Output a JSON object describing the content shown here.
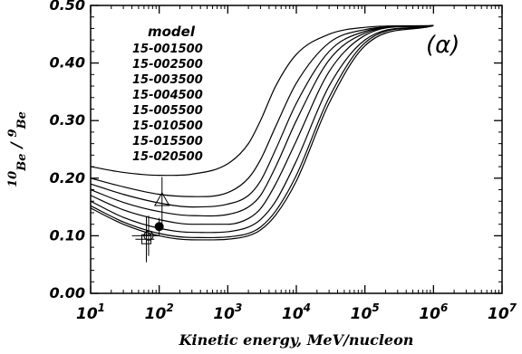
{
  "chart_data": {
    "type": "line",
    "panel_label": "(α)",
    "xlabel": "Kinetic energy, MeV/nucleon",
    "ylabel_parts": {
      "sup1": "10",
      "sub1": "Be",
      "slash": " / ",
      "sup2": "9",
      "sub2": "Be"
    },
    "xscale": "log",
    "xlim": [
      10,
      10000000
    ],
    "ylim": [
      0.0,
      0.5
    ],
    "grid": false,
    "x_ticks": [
      {
        "base": "10",
        "exp": "1",
        "value": 10
      },
      {
        "base": "10",
        "exp": "2",
        "value": 100
      },
      {
        "base": "10",
        "exp": "3",
        "value": 1000
      },
      {
        "base": "10",
        "exp": "4",
        "value": 10000
      },
      {
        "base": "10",
        "exp": "5",
        "value": 100000
      },
      {
        "base": "10",
        "exp": "6",
        "value": 1000000
      },
      {
        "base": "10",
        "exp": "7",
        "value": 10000000
      }
    ],
    "y_ticks": [
      {
        "label": "0.00",
        "value": 0.0
      },
      {
        "label": "0.10",
        "value": 0.1
      },
      {
        "label": "0.20",
        "value": 0.2
      },
      {
        "label": "0.30",
        "value": 0.3
      },
      {
        "label": "0.40",
        "value": 0.4
      },
      {
        "label": "0.50",
        "value": 0.5
      }
    ],
    "legend": {
      "title": "model",
      "placement": "top-left",
      "entries": [
        "15-001500",
        "15-002500",
        "15-003500",
        "15-004500",
        "15-005500",
        "15-010500",
        "15-015500",
        "15-020500"
      ]
    },
    "series": [
      {
        "name": "15-001500",
        "x": [
          10,
          30,
          100,
          300,
          1000,
          2000,
          3000,
          5000,
          10000,
          30000,
          100000,
          1000000
        ],
        "y": [
          0.22,
          0.21,
          0.205,
          0.207,
          0.225,
          0.26,
          0.3,
          0.36,
          0.415,
          0.45,
          0.462,
          0.465
        ]
      },
      {
        "name": "15-002500",
        "x": [
          10,
          30,
          100,
          300,
          1000,
          2000,
          3000,
          5000,
          10000,
          30000,
          100000,
          1000000
        ],
        "y": [
          0.2,
          0.185,
          0.172,
          0.168,
          0.175,
          0.2,
          0.232,
          0.29,
          0.365,
          0.435,
          0.458,
          0.465
        ]
      },
      {
        "name": "15-003500",
        "x": [
          10,
          30,
          100,
          300,
          1000,
          2000,
          3000,
          5000,
          10000,
          30000,
          100000,
          1000000
        ],
        "y": [
          0.19,
          0.172,
          0.157,
          0.15,
          0.155,
          0.17,
          0.195,
          0.25,
          0.33,
          0.42,
          0.455,
          0.465
        ]
      },
      {
        "name": "15-004500",
        "x": [
          10,
          30,
          100,
          300,
          1000,
          2000,
          3000,
          5000,
          10000,
          30000,
          100000,
          1000000
        ],
        "y": [
          0.18,
          0.158,
          0.142,
          0.135,
          0.137,
          0.15,
          0.17,
          0.22,
          0.3,
          0.405,
          0.452,
          0.465
        ]
      },
      {
        "name": "15-005500",
        "x": [
          10,
          30,
          100,
          300,
          1000,
          2000,
          3000,
          5000,
          10000,
          30000,
          100000,
          1000000
        ],
        "y": [
          0.17,
          0.145,
          0.128,
          0.12,
          0.12,
          0.13,
          0.147,
          0.19,
          0.265,
          0.385,
          0.448,
          0.465
        ]
      },
      {
        "name": "15-010500",
        "x": [
          10,
          30,
          100,
          300,
          1000,
          2000,
          3000,
          5000,
          10000,
          30000,
          100000,
          1000000
        ],
        "y": [
          0.16,
          0.132,
          0.113,
          0.106,
          0.107,
          0.115,
          0.128,
          0.16,
          0.23,
          0.36,
          0.44,
          0.465
        ]
      },
      {
        "name": "15-015500",
        "x": [
          10,
          30,
          100,
          300,
          1000,
          2000,
          3000,
          5000,
          10000,
          30000,
          100000,
          1000000
        ],
        "y": [
          0.152,
          0.124,
          0.104,
          0.097,
          0.098,
          0.104,
          0.115,
          0.143,
          0.205,
          0.34,
          0.435,
          0.465
        ]
      },
      {
        "name": "15-020500",
        "x": [
          10,
          30,
          100,
          300,
          1000,
          2000,
          3000,
          5000,
          10000,
          30000,
          100000,
          1000000
        ],
        "y": [
          0.148,
          0.12,
          0.1,
          0.093,
          0.094,
          0.1,
          0.11,
          0.136,
          0.195,
          0.33,
          0.43,
          0.465
        ]
      }
    ],
    "measurements": [
      {
        "marker": "triangle",
        "x": 110,
        "y": 0.162,
        "yerr": 0.04,
        "xerr": [
          0,
          0
        ]
      },
      {
        "marker": "filled-circle",
        "x": 100,
        "y": 0.116,
        "yerr": 0.015,
        "xerr": [
          0,
          0
        ]
      },
      {
        "marker": "open-circle",
        "x": 70,
        "y": 0.1,
        "yerr": 0.035,
        "xerr": [
          30,
          30
        ]
      },
      {
        "marker": "square",
        "x": 65,
        "y": 0.094,
        "yerr": 0.04,
        "xerr": [
          20,
          20
        ]
      }
    ]
  }
}
